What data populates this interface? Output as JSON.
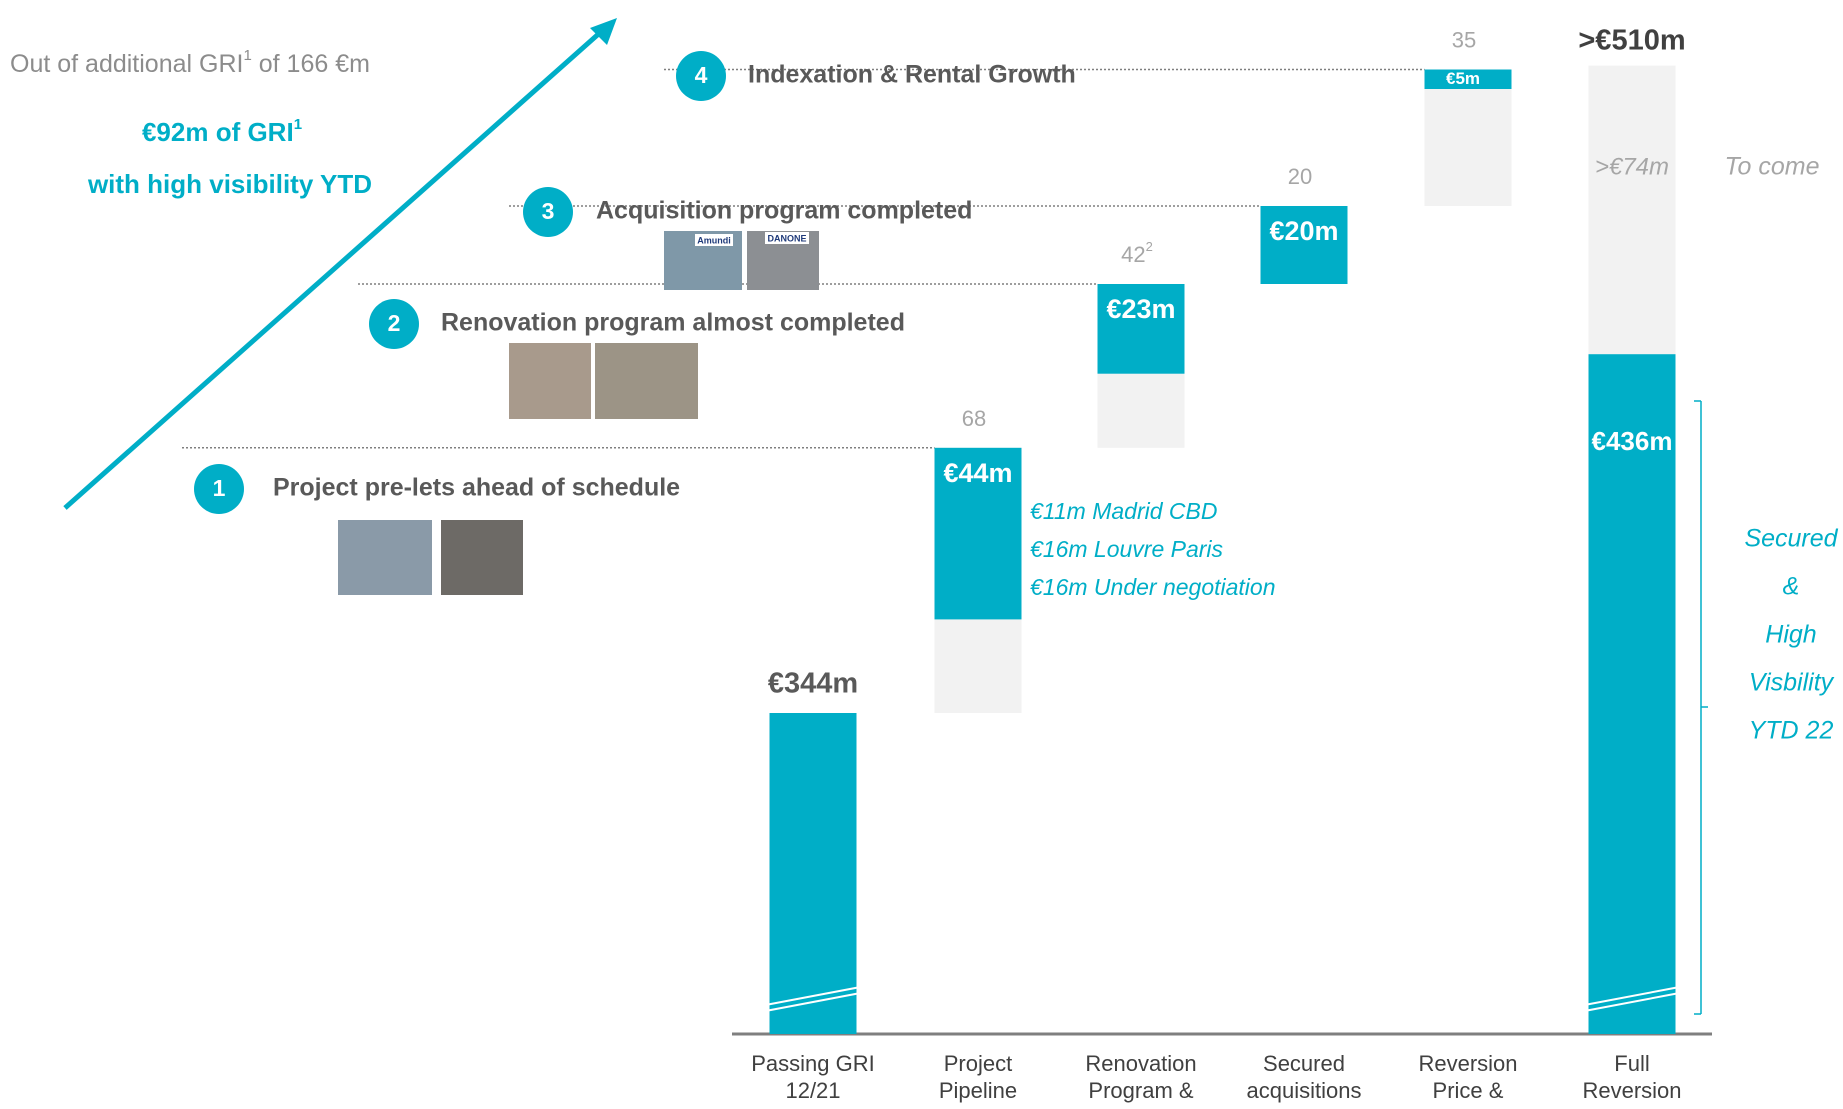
{
  "chart_data": {
    "type": "waterfall",
    "categories": [
      [
        "Passing GRI",
        "12/21"
      ],
      [
        "Project",
        "Pipeline"
      ],
      [
        "Renovation",
        "Program &"
      ],
      [
        "Secured",
        "acquisitions"
      ],
      [
        "Reversion",
        "Price &"
      ],
      [
        "Full",
        "Reversion"
      ]
    ],
    "series": [
      {
        "color": "#00aec7",
        "values": [
          344,
          44,
          23,
          20,
          5,
          436
        ],
        "value_labels": [
          "€344m",
          "€44m",
          "€23m",
          "€20m",
          "€5m",
          "€436m"
        ]
      },
      {
        "color": "#f2f2f2",
        "values": [
          null,
          68,
          42,
          20,
          35,
          510
        ],
        "value_labels": [
          null,
          "68",
          "42",
          "20",
          "35",
          ">€510m"
        ],
        "footnote_marks": [
          null,
          null,
          "2",
          null,
          null,
          null
        ]
      },
      {
        "name": "To come",
        "color": "#f2f2f2",
        "values": [
          null,
          null,
          null,
          null,
          null,
          74
        ],
        "value_labels": [
          null,
          null,
          null,
          null,
          null,
          ">€74m"
        ]
      }
    ],
    "header": {
      "line1": {
        "text": "Out of additional GRI",
        "sup": "1",
        "rest": " of 166 €m"
      },
      "line2": {
        "text": "€92m of GRI",
        "sup": "1"
      },
      "line3": "with high visibility YTD"
    },
    "steps": [
      {
        "number": "1",
        "label": "Project pre-lets ahead of schedule"
      },
      {
        "number": "2",
        "label": "Renovation program almost completed"
      },
      {
        "number": "3",
        "label": "Acquisition program completed",
        "logos": [
          "Amundi",
          "DANONE"
        ]
      },
      {
        "number": "4",
        "label": "Indexation & Rental Growth"
      }
    ],
    "pipeline_breakdown": [
      "€11m Madrid CBD",
      "€16m Louvre Paris",
      "€16m Under negotiation"
    ],
    "bracket_label": [
      "Secured",
      "&",
      "High",
      "Visbility",
      "YTD 22"
    ]
  }
}
